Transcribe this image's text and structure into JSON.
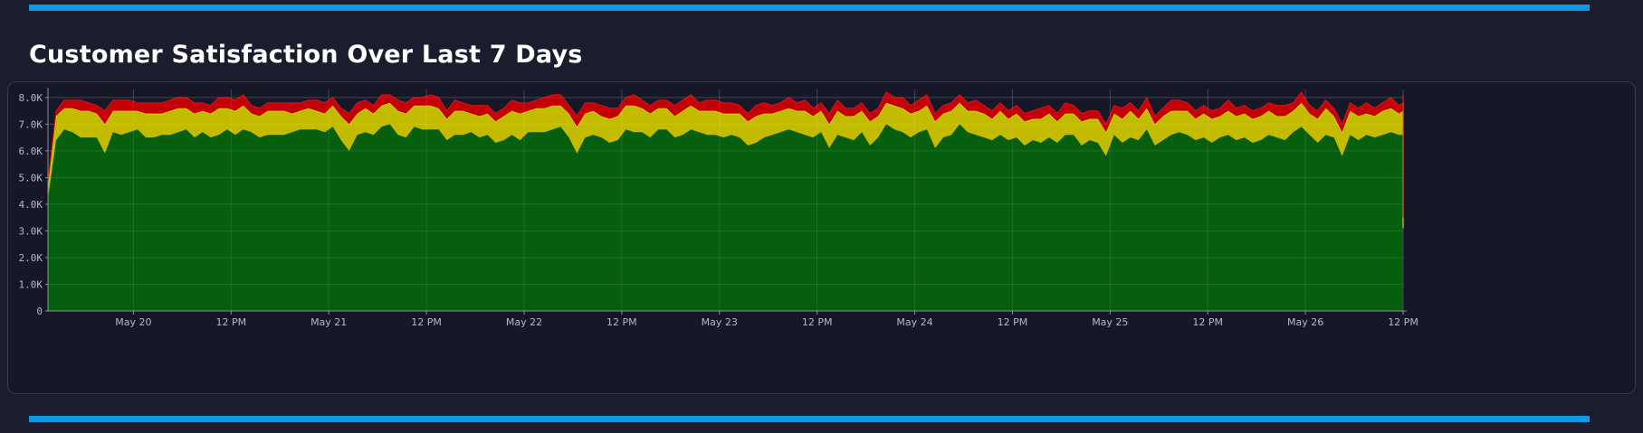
{
  "title": "Customer Satisfaction Over Last 7 Days",
  "colors": {
    "background": "#1b1d2e",
    "accent": "#0d9be6",
    "satisfied": "#065f0d",
    "tolerating": "#c2bb00",
    "tolerating_line": "#f3ef2e",
    "frustrated": "#c40006",
    "frustrated_line": "#e0181d"
  },
  "chart_data": {
    "type": "area",
    "stacked": true,
    "x_start": "2025-05-19T13:30",
    "x_end": "2025-05-26T12:00",
    "interval_minutes": 60,
    "ylim": [
      0,
      8300
    ],
    "yticks": [
      0,
      1000,
      2000,
      3000,
      4000,
      5000,
      6000,
      7000,
      8000
    ],
    "ytick_labels": [
      "0",
      "1.0K",
      "2.0K",
      "3.0K",
      "4.0K",
      "5.0K",
      "6.0K",
      "7.0K",
      "8.0K"
    ],
    "xticks": [
      {
        "x": "2025-05-20T00:00",
        "label": "May 20"
      },
      {
        "x": "2025-05-20T12:00",
        "label": "12 PM"
      },
      {
        "x": "2025-05-21T00:00",
        "label": "May 21"
      },
      {
        "x": "2025-05-21T12:00",
        "label": "12 PM"
      },
      {
        "x": "2025-05-22T00:00",
        "label": "May 22"
      },
      {
        "x": "2025-05-22T12:00",
        "label": "12 PM"
      },
      {
        "x": "2025-05-23T00:00",
        "label": "May 23"
      },
      {
        "x": "2025-05-23T12:00",
        "label": "12 PM"
      },
      {
        "x": "2025-05-24T00:00",
        "label": "May 24"
      },
      {
        "x": "2025-05-24T12:00",
        "label": "12 PM"
      },
      {
        "x": "2025-05-25T00:00",
        "label": "May 25"
      },
      {
        "x": "2025-05-25T12:00",
        "label": "12 PM"
      },
      {
        "x": "2025-05-26T00:00",
        "label": "May 26"
      },
      {
        "x": "2025-05-26T12:00",
        "label": "12 PM"
      }
    ],
    "grid": true,
    "legend": "none",
    "series": [
      {
        "color": "#065f0d",
        "values": [
          4200,
          6400,
          6800,
          6700,
          6500,
          6500,
          6500,
          5900,
          6700,
          6600,
          6700,
          6800,
          6500,
          6500,
          6600,
          6600,
          6700,
          6800,
          6500,
          6700,
          6500,
          6600,
          6800,
          6600,
          6800,
          6700,
          6500,
          6600,
          6600,
          6600,
          6700,
          6800,
          6800,
          6800,
          6700,
          6900,
          6400,
          6000,
          6600,
          6700,
          6600,
          6900,
          7000,
          6600,
          6500,
          6900,
          6800,
          6800,
          6800,
          6400,
          6600,
          6600,
          6700,
          6500,
          6600,
          6300,
          6400,
          6600,
          6400,
          6700,
          6700,
          6700,
          6800,
          6900,
          6500,
          5900,
          6500,
          6600,
          6500,
          6300,
          6400,
          6800,
          6700,
          6700,
          6500,
          6800,
          6800,
          6500,
          6600,
          6800,
          6700,
          6600,
          6600,
          6500,
          6600,
          6500,
          6200,
          6300,
          6500,
          6600,
          6700,
          6800,
          6700,
          6600,
          6500,
          6700,
          6100,
          6600,
          6500,
          6400,
          6700,
          6200,
          6500,
          7000,
          6800,
          6700,
          6500,
          6700,
          6800,
          6100,
          6500,
          6600,
          7000,
          6700,
          6600,
          6500,
          6400,
          6600,
          6400,
          6500,
          6200,
          6400,
          6300,
          6500,
          6300,
          6600,
          6600,
          6200,
          6400,
          6300,
          5800,
          6600,
          6300,
          6500,
          6400,
          6800,
          6200,
          6400,
          6600,
          6700,
          6600,
          6400,
          6500,
          6300,
          6500,
          6600,
          6400,
          6500,
          6300,
          6400,
          6600,
          6500,
          6400,
          6700,
          6900,
          6600,
          6300,
          6600,
          6500,
          5800,
          6600,
          6400,
          6600,
          6500,
          6600,
          6700,
          6600,
          6600,
          6400,
          6500,
          6900,
          6400,
          6100,
          6300,
          6500,
          6600,
          6700,
          6000,
          6200,
          6200,
          6400,
          6400,
          6500,
          6500,
          6500,
          6500,
          6500,
          6900,
          5700,
          6500,
          6400,
          6500,
          6600,
          6600,
          6800,
          6700,
          6500,
          6700,
          6800,
          6400,
          6600,
          6600,
          6300,
          6400,
          6700,
          6500,
          6500,
          6400,
          6400,
          6700,
          6200,
          3900,
          2300
        ]
      },
      {
        "color": "#c2bb00",
        "values": [
          500,
          900,
          800,
          900,
          1000,
          1000,
          900,
          1100,
          800,
          900,
          800,
          700,
          900,
          900,
          800,
          900,
          900,
          800,
          900,
          800,
          900,
          1000,
          800,
          900,
          900,
          700,
          800,
          900,
          900,
          900,
          700,
          700,
          800,
          700,
          700,
          800,
          900,
          1000,
          800,
          900,
          800,
          800,
          800,
          900,
          900,
          800,
          900,
          900,
          800,
          800,
          900,
          900,
          700,
          800,
          800,
          800,
          900,
          900,
          1000,
          800,
          900,
          900,
          900,
          800,
          900,
          1000,
          900,
          900,
          800,
          900,
          900,
          900,
          1000,
          900,
          900,
          800,
          800,
          800,
          900,
          900,
          800,
          900,
          900,
          900,
          800,
          900,
          900,
          1000,
          900,
          800,
          800,
          800,
          800,
          900,
          800,
          800,
          900,
          900,
          800,
          900,
          800,
          900,
          800,
          800,
          900,
          900,
          900,
          800,
          900,
          1000,
          900,
          900,
          800,
          800,
          900,
          900,
          800,
          900,
          800,
          900,
          900,
          800,
          900,
          900,
          800,
          800,
          800,
          900,
          800,
          900,
          900,
          800,
          900,
          1000,
          800,
          800,
          800,
          900,
          900,
          800,
          900,
          800,
          900,
          900,
          800,
          900,
          900,
          900,
          900,
          900,
          900,
          800,
          900,
          800,
          900,
          800,
          900,
          1000,
          800,
          900,
          900,
          900,
          800,
          800,
          900,
          900,
          800,
          900,
          800,
          800,
          900,
          800,
          900,
          900,
          900,
          700,
          900,
          900,
          700,
          800,
          900,
          900,
          900,
          800,
          900,
          900,
          900,
          800,
          800,
          900,
          900,
          800,
          900,
          900,
          800,
          800,
          900,
          800,
          800,
          700,
          900,
          900,
          800,
          900,
          900,
          900,
          800,
          900,
          900,
          900,
          900,
          1000,
          800,
          500,
          400
        ]
      },
      {
        "color": "#c40006",
        "values": [
          100,
          200,
          300,
          300,
          400,
          300,
          300,
          500,
          400,
          400,
          400,
          300,
          400,
          400,
          400,
          400,
          400,
          400,
          400,
          300,
          300,
          400,
          400,
          400,
          400,
          300,
          300,
          300,
          300,
          300,
          400,
          300,
          300,
          400,
          400,
          300,
          300,
          400,
          400,
          300,
          300,
          400,
          300,
          400,
          400,
          300,
          300,
          400,
          400,
          300,
          400,
          300,
          300,
          400,
          300,
          300,
          300,
          400,
          400,
          300,
          300,
          400,
          400,
          400,
          300,
          400,
          400,
          300,
          400,
          400,
          300,
          300,
          400,
          300,
          300,
          300,
          300,
          400,
          400,
          400,
          300,
          400,
          400,
          400,
          400,
          300,
          300,
          400,
          400,
          300,
          300,
          400,
          300,
          400,
          300,
          300,
          400,
          400,
          300,
          300,
          300,
          300,
          300,
          400,
          300,
          400,
          300,
          400,
          400,
          300,
          300,
          300,
          300,
          300,
          400,
          300,
          300,
          300,
          300,
          300,
          300,
          300,
          400,
          300,
          300,
          400,
          300,
          300,
          300,
          300,
          300,
          300,
          400,
          300,
          300,
          400,
          300,
          300,
          400,
          400,
          300,
          300,
          300,
          300,
          300,
          400,
          300,
          300,
          300,
          300,
          300,
          400,
          400,
          300,
          400,
          300,
          300,
          300,
          300,
          300,
          300,
          300,
          400,
          300,
          300,
          400,
          300,
          300,
          400,
          300,
          300,
          300,
          300,
          300,
          300,
          300,
          400,
          400,
          300,
          300,
          300,
          300,
          300,
          400,
          300,
          300,
          300,
          300,
          300,
          400,
          300,
          300,
          300,
          400,
          300,
          400,
          300,
          300,
          300,
          300,
          300,
          300,
          300,
          300,
          300,
          300,
          300,
          300,
          300,
          300,
          300,
          400,
          400,
          300,
          300,
          200,
          100
        ]
      }
    ]
  }
}
